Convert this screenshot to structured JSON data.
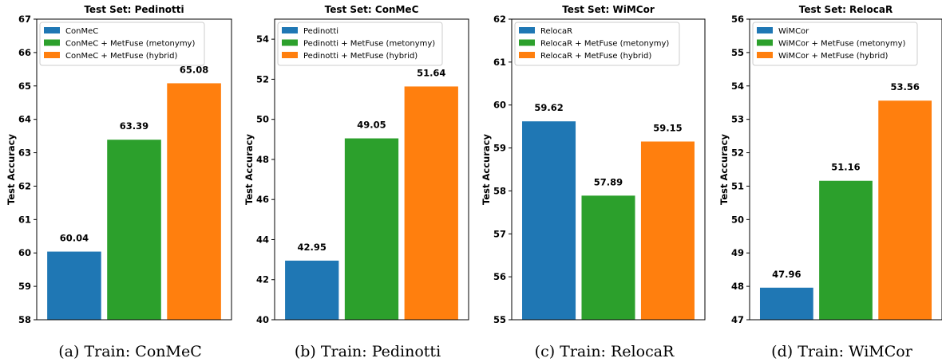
{
  "chart_data": [
    {
      "type": "bar",
      "title": "Test Set: Pedinotti",
      "ylabel": "Test Accuracy",
      "ylim": [
        58,
        67
      ],
      "yticks": [
        58,
        59,
        60,
        61,
        62,
        63,
        64,
        65,
        66,
        67
      ],
      "legend_position": "top-left",
      "categories": [
        "ConMeC",
        "ConMeC + MetFuse (metonymy)",
        "ConMeC + MetFuse (hybrid)"
      ],
      "values": [
        60.04,
        63.39,
        65.08
      ],
      "value_labels": [
        "60.04",
        "63.39",
        "65.08"
      ],
      "colors": [
        "#1f77b4",
        "#2ca02c",
        "#ff7f0e"
      ],
      "caption": "(a) Train: ConMeC"
    },
    {
      "type": "bar",
      "title": "Test Set: ConMeC",
      "ylabel": "Test Accuracy",
      "ylim": [
        40,
        55
      ],
      "yticks": [
        40,
        42,
        44,
        46,
        48,
        50,
        52,
        54
      ],
      "legend_position": "top-left",
      "categories": [
        "Pedinotti",
        "Pedinotti + MetFuse (metonymy)",
        "Pedinotti + MetFuse (hybrid)"
      ],
      "values": [
        42.95,
        49.05,
        51.64
      ],
      "value_labels": [
        "42.95",
        "49.05",
        "51.64"
      ],
      "colors": [
        "#1f77b4",
        "#2ca02c",
        "#ff7f0e"
      ],
      "caption": "(b) Train: Pedinotti"
    },
    {
      "type": "bar",
      "title": "Test Set: WiMCor",
      "ylabel": "Test Accuracy",
      "ylim": [
        55,
        62
      ],
      "yticks": [
        55,
        56,
        57,
        58,
        59,
        60,
        61,
        62
      ],
      "legend_position": "top-left",
      "categories": [
        "RelocaR",
        "RelocaR + MetFuse (metonymy)",
        "RelocaR + MetFuse (hybrid)"
      ],
      "values": [
        59.62,
        57.89,
        59.15
      ],
      "value_labels": [
        "59.62",
        "57.89",
        "59.15"
      ],
      "colors": [
        "#1f77b4",
        "#2ca02c",
        "#ff7f0e"
      ],
      "caption": "(c) Train: RelocaR"
    },
    {
      "type": "bar",
      "title": "Test Set: RelocaR",
      "ylabel": "Test Accuracy",
      "ylim": [
        47,
        56
      ],
      "yticks": [
        47,
        48,
        49,
        50,
        51,
        52,
        53,
        54,
        55,
        56
      ],
      "legend_position": "top-left",
      "categories": [
        "WiMCor",
        "WiMCor + MetFuse (metonymy)",
        "WiMCor + MetFuse (hybrid)"
      ],
      "values": [
        47.96,
        51.16,
        53.56
      ],
      "value_labels": [
        "47.96",
        "51.16",
        "53.56"
      ],
      "colors": [
        "#1f77b4",
        "#2ca02c",
        "#ff7f0e"
      ],
      "caption": "(d) Train: WiMCor"
    }
  ]
}
